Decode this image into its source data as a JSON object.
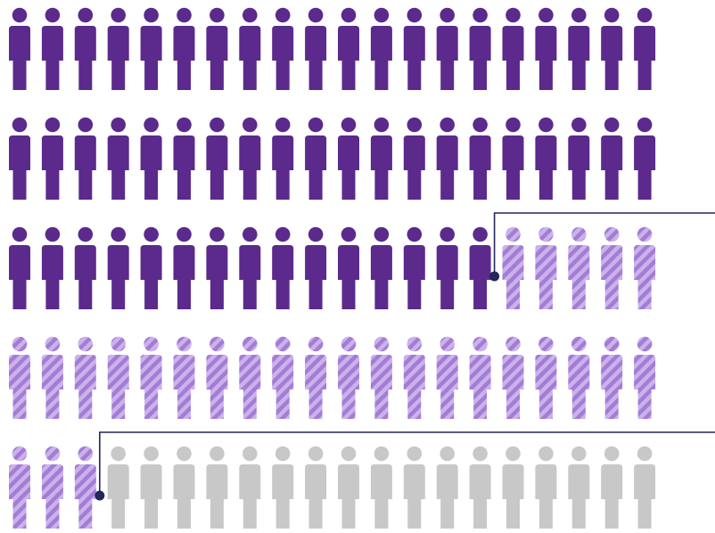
{
  "chart_data": {
    "type": "pictogram",
    "total_icons": 100,
    "icons_per_row": 20,
    "series": [
      {
        "category": "solid",
        "value": 55,
        "color": "#5b2a8c",
        "style": "solid"
      },
      {
        "category": "striped",
        "value": 28,
        "color": "#a47cd6",
        "style": "diagonal-stripes"
      },
      {
        "category": "gray",
        "value": 17,
        "color": "#c8c8c8",
        "style": "solid"
      }
    ],
    "callouts": [
      {
        "after_icon_index": 54,
        "color": "#23275a"
      },
      {
        "after_icon_index": 82,
        "color": "#23275a"
      }
    ],
    "title": "",
    "legend": []
  },
  "colors": {
    "background": "#ffffff",
    "stripe_light": "#c9b3ea",
    "callout_line": "#23275a"
  }
}
